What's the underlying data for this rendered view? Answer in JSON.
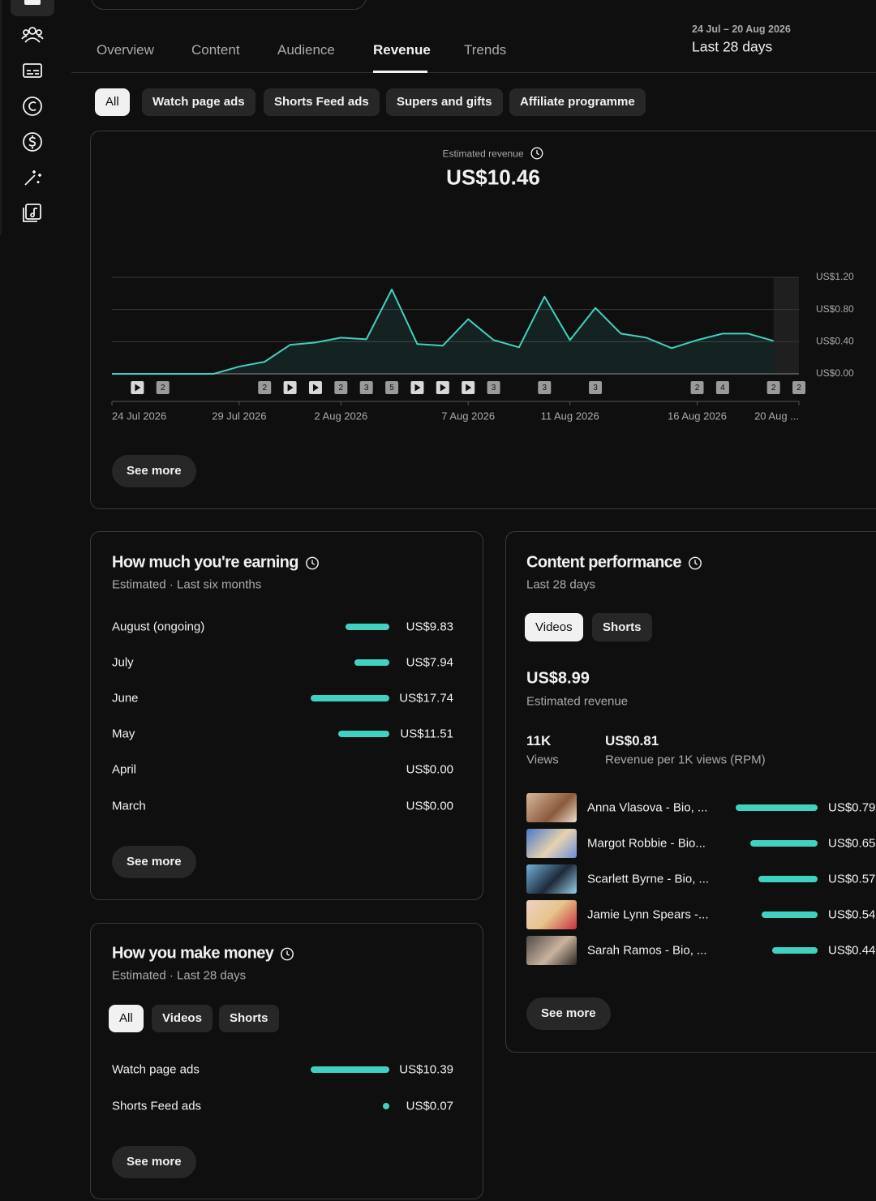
{
  "nav": {
    "tabs": [
      {
        "label": "Overview"
      },
      {
        "label": "Content"
      },
      {
        "label": "Audience"
      },
      {
        "label": "Revenue",
        "selected": true
      },
      {
        "label": "Trends"
      }
    ]
  },
  "date_range": {
    "dates": "24 Jul – 20 Aug 2026",
    "period": "Last 28 days"
  },
  "filters": [
    {
      "label": "All",
      "selected": true
    },
    {
      "label": "Watch page ads"
    },
    {
      "label": "Shorts Feed ads"
    },
    {
      "label": "Supers and gifts"
    },
    {
      "label": "Affiliate programme"
    }
  ],
  "chart_data": {
    "type": "line",
    "title": "Estimated revenue",
    "total": "US$10.46",
    "color": "#41d1c0",
    "categories": [
      "24 Jul 2026",
      null,
      null,
      null,
      null,
      "29 Jul 2026",
      null,
      null,
      null,
      "2 Aug 2026",
      null,
      null,
      null,
      null,
      "7 Aug 2026",
      null,
      null,
      null,
      "11 Aug 2026",
      null,
      null,
      null,
      null,
      "16 Aug 2026",
      null,
      null,
      null,
      "20 Aug ..."
    ],
    "values": [
      0,
      0,
      0,
      0,
      0,
      0.09,
      0.15,
      0.36,
      0.39,
      0.45,
      0.43,
      1.05,
      0.37,
      0.35,
      0.68,
      0.42,
      0.33,
      0.96,
      0.42,
      0.82,
      0.5,
      0.45,
      0.32,
      0.42,
      0.5,
      0.5,
      0.41,
      null
    ],
    "uploads": [
      null,
      1,
      2,
      null,
      null,
      null,
      2,
      1,
      1,
      2,
      3,
      5,
      1,
      1,
      1,
      3,
      null,
      3,
      null,
      3,
      null,
      null,
      null,
      2,
      4,
      null,
      2,
      2
    ],
    "ylim": [
      0,
      1.2
    ],
    "yticks": [
      {
        "value": 0,
        "label": "US$0.00"
      },
      {
        "value": 0.4,
        "label": "US$0.40"
      },
      {
        "value": 0.8,
        "label": "US$0.80"
      },
      {
        "value": 1.2,
        "label": "US$1.20"
      }
    ],
    "grid": true,
    "button": "See more"
  },
  "earnings": {
    "title": "How much you're earning",
    "subtitle": "Estimated · Last six months",
    "color": "#41d1c0",
    "rows": [
      {
        "label": "August (ongoing)",
        "value": 9.83,
        "value_label": "US$9.83"
      },
      {
        "label": "July",
        "value": 7.94,
        "value_label": "US$7.94"
      },
      {
        "label": "June",
        "value": 17.74,
        "value_label": "US$17.74"
      },
      {
        "label": "May",
        "value": 11.51,
        "value_label": "US$11.51"
      },
      {
        "label": "April",
        "value": 0,
        "value_label": "US$0.00"
      },
      {
        "label": "March",
        "value": 0,
        "value_label": "US$0.00"
      }
    ],
    "button": "See more"
  },
  "money": {
    "title": "How you make money",
    "subtitle": "Estimated · Last 28 days",
    "color": "#41d1c0",
    "filters": [
      {
        "label": "All",
        "selected": true
      },
      {
        "label": "Videos"
      },
      {
        "label": "Shorts"
      }
    ],
    "rows": [
      {
        "label": "Watch page ads",
        "value": 10.39,
        "value_label": "US$10.39"
      },
      {
        "label": "Shorts Feed ads",
        "value": 0.07,
        "value_label": "US$0.07"
      }
    ],
    "button": "See more"
  },
  "content": {
    "title": "Content performance",
    "subtitle": "Last 28 days",
    "color": "#41d1c0",
    "tabs": [
      {
        "label": "Videos",
        "selected": true
      },
      {
        "label": "Shorts"
      }
    ],
    "revenue": "US$8.99",
    "revenue_label": "Estimated revenue",
    "stats": [
      {
        "value": "11K",
        "label": "Views"
      },
      {
        "value": "US$0.81",
        "label": "Revenue per 1K views (RPM)"
      }
    ],
    "videos": [
      {
        "title": "Anna Vlasova - Bio, ...",
        "value": 0.79,
        "value_label": "US$0.79"
      },
      {
        "title": "Margot Robbie - Bio...",
        "value": 0.65,
        "value_label": "US$0.65"
      },
      {
        "title": "Scarlett Byrne - Bio, ...",
        "value": 0.57,
        "value_label": "US$0.57"
      },
      {
        "title": "Jamie Lynn Spears -...",
        "value": 0.54,
        "value_label": "US$0.54"
      },
      {
        "title": "Sarah Ramos - Bio, ...",
        "value": 0.44,
        "value_label": "US$0.44"
      }
    ],
    "button": "See more"
  }
}
